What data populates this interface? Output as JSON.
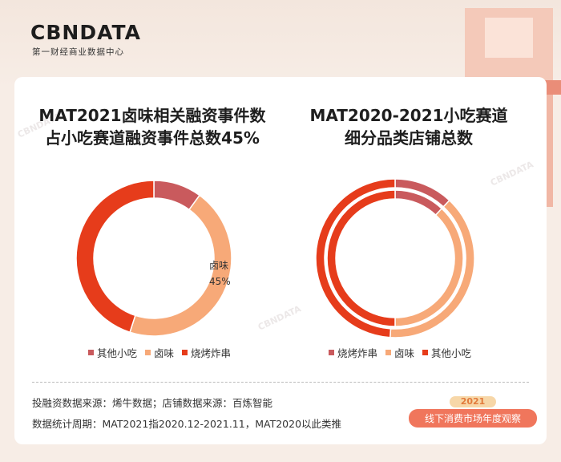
{
  "header": {
    "logo": "CBNDATA",
    "logo_sub": "第一财经商业数据中心"
  },
  "watermark": "CBNDATA",
  "chart_data": [
    {
      "type": "pie",
      "subtype": "donut",
      "title": "MAT2021卤味相关融资事件数\n占小吃赛道融资事件总数45%",
      "categories": [
        "其他小吃",
        "卤味",
        "烧烤炸串"
      ],
      "values": [
        10,
        45,
        45
      ],
      "colors": [
        "#c95a5d",
        "#f7a978",
        "#e63c1b"
      ],
      "annotation": {
        "label": "卤味",
        "value": "45%"
      },
      "legend": [
        "其他小吃",
        "卤味",
        "烧烤炸串"
      ],
      "legend_position": "bottom"
    },
    {
      "type": "pie",
      "subtype": "double-donut",
      "title": "MAT2020-2021小吃赛道\n细分品类店铺总数",
      "categories": [
        "烧烤炸串",
        "卤味",
        "其他小吃"
      ],
      "series": [
        {
          "ring": "outer",
          "values": [
            12,
            39,
            49
          ]
        },
        {
          "ring": "inner",
          "values": [
            12,
            38,
            50
          ]
        }
      ],
      "colors": [
        "#c95a5d",
        "#f7a978",
        "#e63c1b"
      ],
      "legend": [
        "烧烤炸串",
        "卤味",
        "其他小吃"
      ],
      "legend_position": "bottom"
    }
  ],
  "footer": {
    "source_1": "投融资数据来源：烯牛数据；店铺数据来源：百炼智能",
    "source_2": "数据统计周期：MAT2021指2020.12-2021.11，MAT2020以此类推",
    "badge_year": "2021",
    "badge_text": "线下消费市场年度观察"
  }
}
